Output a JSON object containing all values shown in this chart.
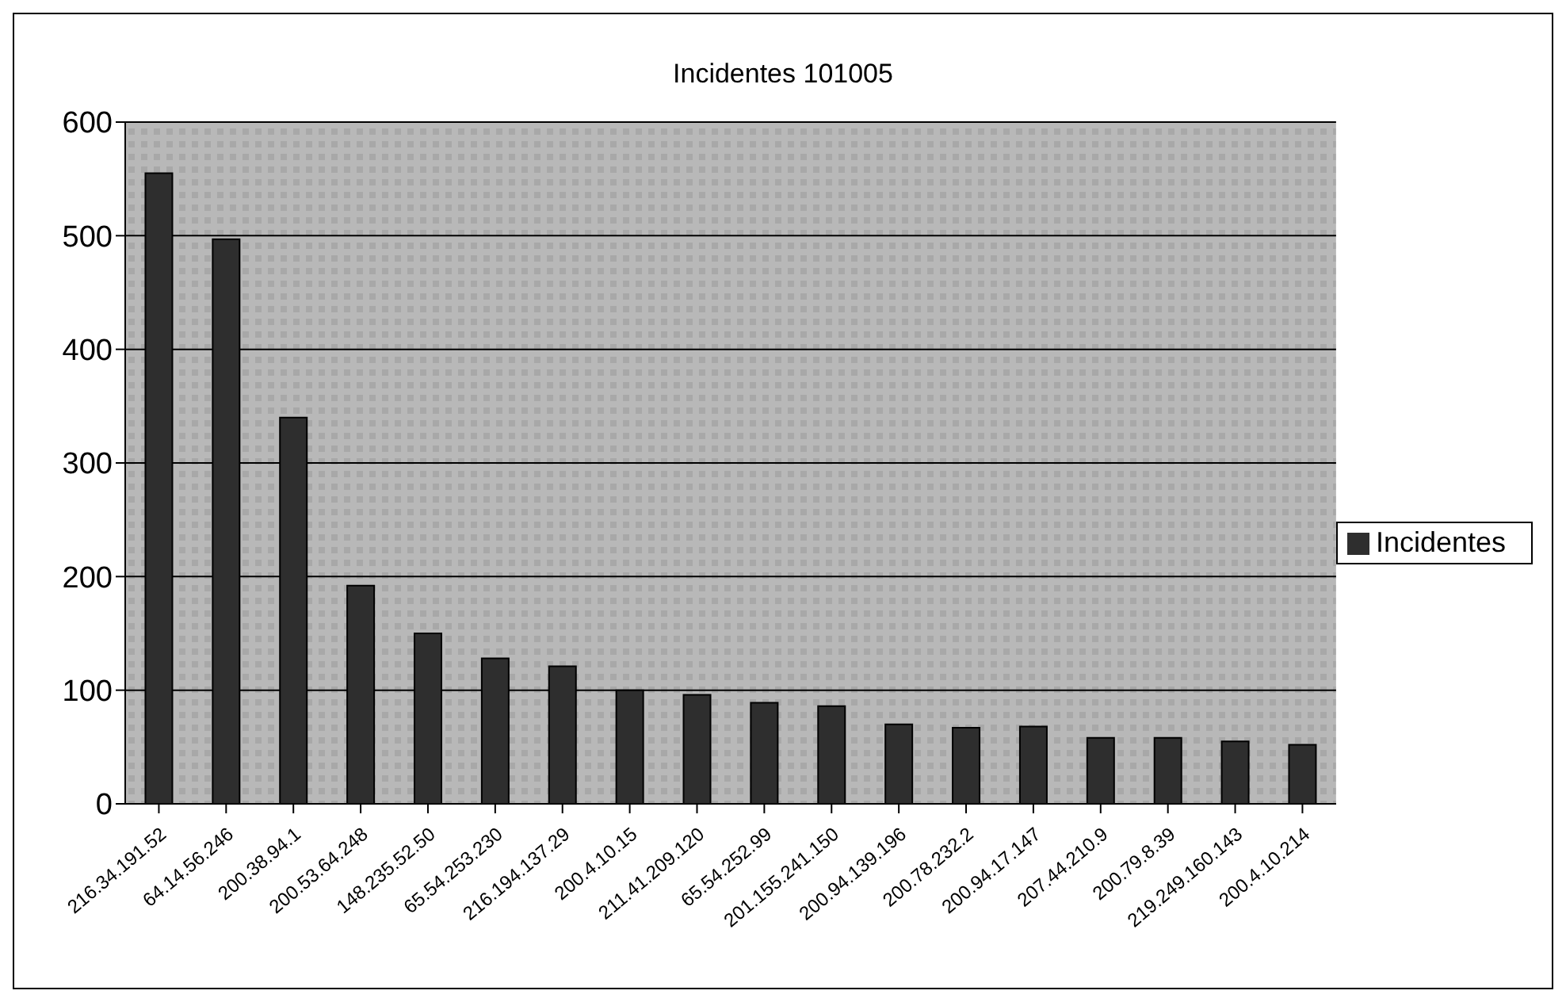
{
  "chart_data": {
    "type": "bar",
    "title": "Incidentes 101005",
    "categories": [
      "216.34.191.52",
      "64.14.56.246",
      "200.38.94.1",
      "200.53.64.248",
      "148.235.52.50",
      "65.54.253.230",
      "216.194.137.29",
      "200.4.10.15",
      "211.41.209.120",
      "65.54.252.99",
      "201.155.241.150",
      "200.94.139.196",
      "200.78.232.2",
      "200.94.17.147",
      "207.44.210.9",
      "200.79.8.39",
      "219.249.160.143",
      "200.4.10.214"
    ],
    "series": [
      {
        "name": "Incidentes",
        "color": "#2e2e2e",
        "values": [
          555,
          497,
          340,
          192,
          150,
          128,
          121,
          100,
          96,
          89,
          86,
          70,
          67,
          68,
          58,
          58,
          55,
          52
        ]
      }
    ],
    "ylim": [
      0,
      600
    ],
    "yticks": [
      0,
      100,
      200,
      300,
      400,
      500,
      600
    ],
    "grid": "y",
    "legend": "right"
  }
}
